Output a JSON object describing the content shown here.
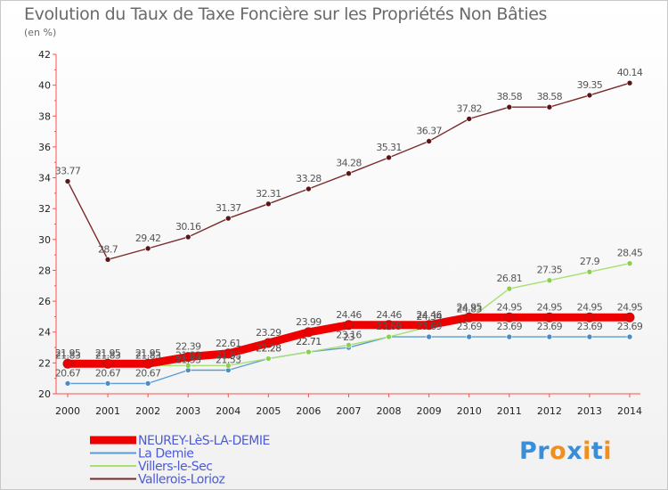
{
  "page": {
    "title": "Evolution du Taux de Taxe Foncière sur les Propriétés Non Bâties",
    "subtitle": "(en %)"
  },
  "logo": {
    "text": "Proxiti"
  },
  "chart_data": {
    "type": "line",
    "title": "Evolution du Taux de Taxe Foncière sur les Propriétés Non Bâties",
    "subtitle": "(en %)",
    "xlabel": "",
    "ylabel": "(en %)",
    "ylim": [
      20,
      42
    ],
    "yticks": [
      20,
      22,
      24,
      26,
      28,
      30,
      32,
      34,
      36,
      38,
      40,
      42
    ],
    "x": [
      "2000",
      "2001",
      "2002",
      "2003",
      "2004",
      "2005",
      "2006",
      "2007",
      "2008",
      "2009",
      "2010",
      "2011",
      "2012",
      "2013",
      "2014"
    ],
    "grid": false,
    "legend_position": "bottom-left",
    "series": [
      {
        "name": "NEUREY-LèS-LA-DEMIE",
        "color": "#ee0000",
        "marker": "#d03010",
        "values": [
          21.95,
          21.95,
          21.95,
          22.39,
          22.61,
          23.29,
          23.99,
          24.46,
          24.46,
          24.46,
          24.95,
          24.95,
          24.95,
          24.95,
          24.95
        ],
        "labels": [
          "21.95",
          "21.95",
          "21.95",
          "22.39",
          "22.61",
          "23.29",
          "23.99",
          "24.46",
          "24.46",
          "24.46",
          "24.95",
          "24.95",
          "24.95",
          "24.95",
          "24.95"
        ]
      },
      {
        "name": "La Demie",
        "color": "#5c9bd1",
        "marker": "#4c8cc4",
        "values": [
          20.67,
          20.67,
          20.67,
          21.53,
          21.53,
          22.28,
          22.71,
          23.0,
          23.69,
          23.69,
          23.69,
          23.69,
          23.69,
          23.69,
          23.69
        ],
        "labels": [
          "20.67",
          "20.67",
          "20.67",
          "21.53",
          "21.53",
          "22.28",
          "22.71",
          "23",
          "23.69",
          "23.69",
          "23.69",
          "23.69",
          "23.69",
          "23.69",
          "23.69"
        ]
      },
      {
        "name": "Villers-le-Sec",
        "color": "#a6e070",
        "marker": "#8ad04e",
        "values": [
          21.83,
          21.83,
          21.83,
          21.83,
          21.83,
          22.28,
          22.71,
          23.16,
          23.69,
          24.34,
          24.83,
          26.81,
          27.35,
          27.9,
          28.45
        ],
        "labels": [
          "21.83",
          "21.83",
          "21.83",
          "21.83",
          "21.83",
          "22.28",
          "22.71",
          "23.16",
          "23.69",
          "24.34",
          "24.83",
          "26.81",
          "27.35",
          "27.9",
          "28.45"
        ]
      },
      {
        "name": "Vallerois-Lorioz",
        "color": "#7a2a2a",
        "marker": "#5a1616",
        "values": [
          33.77,
          28.7,
          29.42,
          30.16,
          31.37,
          32.31,
          33.28,
          34.28,
          35.31,
          36.37,
          37.82,
          38.58,
          38.58,
          39.35,
          40.14
        ],
        "labels": [
          "33.77",
          "28.7",
          "29.42",
          "30.16",
          "31.37",
          "32.31",
          "33.28",
          "34.28",
          "35.31",
          "36.37",
          "37.82",
          "38.58",
          "38.58",
          "39.35",
          "40.14"
        ]
      }
    ]
  }
}
